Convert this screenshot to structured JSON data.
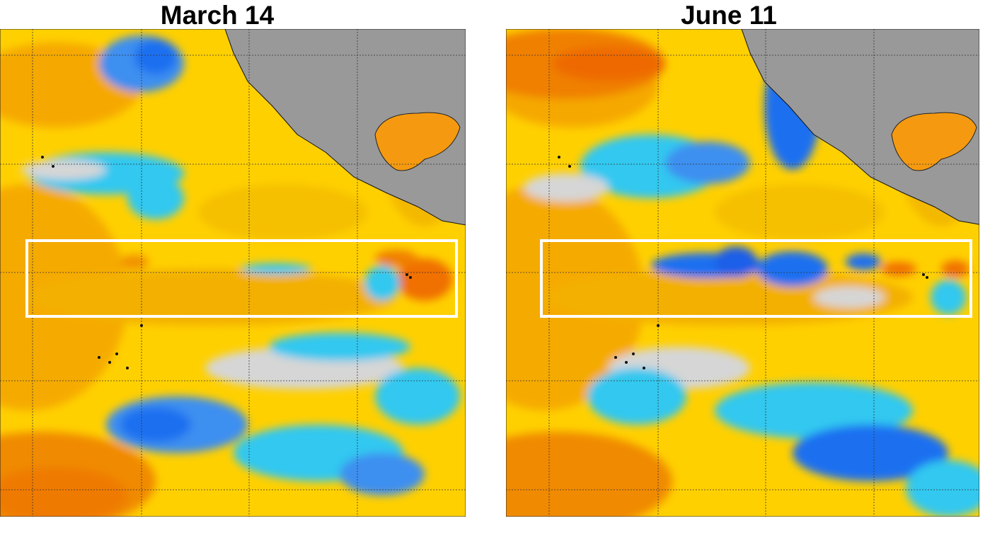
{
  "panels": [
    {
      "title": "March 14"
    },
    {
      "title": "June 11"
    }
  ]
}
